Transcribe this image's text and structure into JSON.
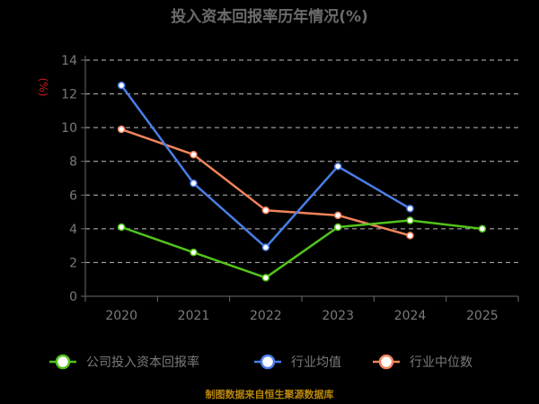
{
  "chart_data": {
    "type": "line",
    "title": "投入资本回报率历年情况(%)",
    "ylabel": "(%)",
    "categories": [
      "2020",
      "2021",
      "2022",
      "2023",
      "2024",
      "2025"
    ],
    "ylim": [
      0,
      14
    ],
    "yticks": [
      0,
      2,
      4,
      6,
      8,
      10,
      12,
      14
    ],
    "grid": true,
    "legend_position": "bottom",
    "series": [
      {
        "name": "公司投入资本回报率",
        "color": "#52c41a",
        "values": [
          4.1,
          2.6,
          1.1,
          4.1,
          4.5,
          4.0
        ]
      },
      {
        "name": "行业均值",
        "color": "#4a7ee8",
        "values": [
          12.5,
          6.7,
          2.9,
          7.7,
          5.2,
          null
        ]
      },
      {
        "name": "行业中位数",
        "color": "#f0845c",
        "values": [
          9.9,
          8.4,
          5.1,
          4.8,
          3.6,
          null
        ]
      }
    ]
  },
  "source_text": "制图数据来自恒生聚源数据库"
}
